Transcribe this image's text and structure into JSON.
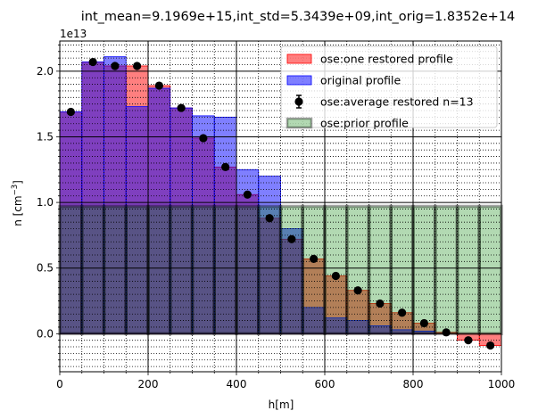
{
  "chart_data": {
    "type": "bar",
    "title": "int_mean=9.1969e+15,int_std=5.3439e+09,int_orig=1.8352e+14",
    "xlabel": "h[m]",
    "ylabel": "n [cm^-3]",
    "ylabel_base": "n [cm",
    "ylabel_exp": "−3",
    "ylabel_close": "]",
    "y_offset_label": "1e13",
    "xlim": [
      0,
      1000
    ],
    "ylim": [
      -0.29,
      2.23
    ],
    "y_scale_note": "values in units of 1e13",
    "x_ticks": [
      0,
      200,
      400,
      600,
      800,
      1000
    ],
    "y_ticks": [
      0.0,
      0.5,
      1.0,
      1.5,
      2.0
    ],
    "y_tick_labels": [
      "0.0",
      "0.5",
      "1.0",
      "1.5",
      "2.0"
    ],
    "grid": true,
    "legend_position": "top-right",
    "bin_edges": [
      0,
      50,
      100,
      150,
      200,
      250,
      300,
      350,
      400,
      450,
      500,
      550,
      600,
      650,
      700,
      750,
      800,
      850,
      900,
      950,
      1000
    ],
    "x_centers": [
      25,
      75,
      125,
      175,
      225,
      275,
      325,
      375,
      425,
      475,
      525,
      575,
      625,
      675,
      725,
      775,
      825,
      875,
      925,
      975
    ],
    "series": [
      {
        "name": "ose:one restored profile",
        "kind": "bar",
        "color": "#ff0000",
        "values": [
          1.69,
          2.07,
          2.04,
          2.04,
          1.89,
          1.72,
          1.49,
          1.27,
          1.06,
          0.88,
          0.72,
          0.57,
          0.44,
          0.33,
          0.23,
          0.16,
          0.08,
          0.01,
          -0.05,
          -0.09
        ]
      },
      {
        "name": "original profile",
        "kind": "bar",
        "color": "#0000ff",
        "values": [
          1.69,
          2.07,
          2.11,
          1.73,
          1.87,
          1.72,
          1.66,
          1.65,
          1.25,
          1.2,
          0.8,
          0.2,
          0.12,
          0.1,
          0.06,
          0.03,
          0.02,
          0.0,
          0.0,
          0.0
        ]
      },
      {
        "name": "ose:prior profile",
        "kind": "bar",
        "color": "#008000",
        "values": [
          0.97,
          0.97,
          0.97,
          0.97,
          0.97,
          0.97,
          0.97,
          0.97,
          0.97,
          0.97,
          0.97,
          0.97,
          0.97,
          0.97,
          0.97,
          0.97,
          0.97,
          0.97,
          0.97,
          0.97
        ]
      },
      {
        "name": "ose:average restored n=13",
        "kind": "errorbar",
        "color": "#000000",
        "values": [
          1.69,
          2.07,
          2.04,
          2.04,
          1.89,
          1.72,
          1.49,
          1.27,
          1.06,
          0.88,
          0.72,
          0.57,
          0.44,
          0.33,
          0.23,
          0.16,
          0.08,
          0.01,
          -0.05,
          -0.09
        ],
        "error": [
          0.0,
          0.0,
          0.0,
          0.0,
          0.0,
          0.0,
          0.0,
          0.0,
          0.0,
          0.0,
          0.0,
          0.0,
          0.0,
          0.0,
          0.0,
          0.0,
          0.0,
          0.0,
          0.0,
          0.0
        ]
      }
    ],
    "legend_order": [
      0,
      1,
      3,
      2
    ]
  }
}
